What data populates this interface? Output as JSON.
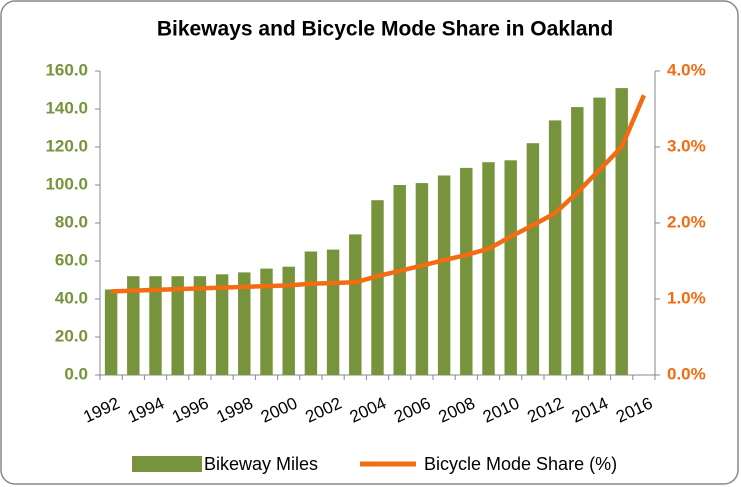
{
  "chart_data": {
    "type": "bar_line",
    "title": "Bikeways and Bicycle Mode Share in Oakland",
    "categories": [
      "1992",
      null,
      "1994",
      null,
      "1996",
      null,
      "1998",
      null,
      "2000",
      null,
      "2002",
      null,
      "2004",
      null,
      "2006",
      null,
      "2008",
      null,
      "2010",
      null,
      "2012",
      null,
      "2014",
      null,
      "2016"
    ],
    "series": [
      {
        "name": "Bikeway Miles",
        "type": "bar",
        "color": "#77933c",
        "axis": "y",
        "values": [
          45,
          52,
          52,
          52,
          52,
          53,
          54,
          56,
          57,
          65,
          66,
          74,
          92,
          100,
          101,
          105,
          109,
          112,
          113,
          122,
          134,
          141,
          146,
          151,
          null
        ]
      },
      {
        "name": "Bicycle Mode Share (%)",
        "type": "line",
        "color": "#f36c12",
        "axis": "y2",
        "values": [
          1.1,
          1.11,
          1.12,
          1.13,
          1.14,
          1.15,
          1.16,
          1.17,
          1.18,
          1.2,
          1.21,
          1.22,
          1.3,
          1.37,
          1.44,
          1.51,
          1.58,
          1.66,
          1.82,
          1.97,
          2.13,
          2.4,
          2.7,
          3.0,
          3.68
        ]
      }
    ],
    "ylim": [
      0,
      160
    ],
    "yticks": [
      {
        "value": 0,
        "label": "0.0"
      },
      {
        "value": 20,
        "label": "20.0"
      },
      {
        "value": 40,
        "label": "40.0"
      },
      {
        "value": 60,
        "label": "60.0"
      },
      {
        "value": 80,
        "label": "80.0"
      },
      {
        "value": 100,
        "label": "100.0"
      },
      {
        "value": 120,
        "label": "120.0"
      },
      {
        "value": 140,
        "label": "140.0"
      },
      {
        "value": 160,
        "label": "160.0"
      }
    ],
    "y2lim": [
      0,
      4
    ],
    "y2ticks": [
      {
        "value": 0,
        "label": "0.0%"
      },
      {
        "value": 1,
        "label": "1.0%"
      },
      {
        "value": 2,
        "label": "2.0%"
      },
      {
        "value": 3,
        "label": "3.0%"
      },
      {
        "value": 4,
        "label": "4.0%"
      }
    ],
    "grid": true,
    "legend": "bottom"
  }
}
